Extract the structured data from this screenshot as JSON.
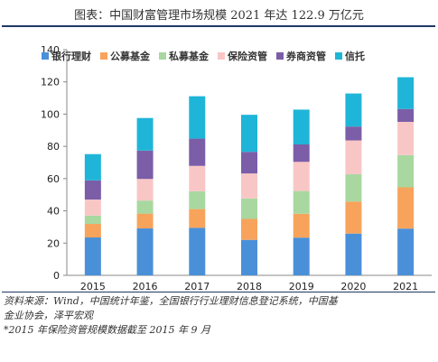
{
  "title": "图表：中国财富管理市场规模 2021 年达 122.9 万亿元",
  "notes": [
    "资料来源：Wind，中国统计年鉴，全国银行行业理财信息登记系统，中国基",
    "金业协会，泽平宏观",
    "*2015 年保险资管规模数据截至 2015 年 9 月"
  ],
  "chart_data": {
    "type": "bar",
    "stacked": true,
    "categories": [
      "2015",
      "2016",
      "2017",
      "2018",
      "2019",
      "2020",
      "2021"
    ],
    "series": [
      {
        "name": "银行理财",
        "color": "#4a90d9",
        "values": [
          23.5,
          29.1,
          29.5,
          22.0,
          23.4,
          25.9,
          29.0
        ]
      },
      {
        "name": "公募基金",
        "color": "#f7a35c",
        "values": [
          8.4,
          9.2,
          11.6,
          13.0,
          14.8,
          19.9,
          25.6
        ]
      },
      {
        "name": "私募基金",
        "color": "#a8d8a0",
        "values": [
          5.2,
          8.1,
          11.1,
          12.7,
          14.1,
          16.9,
          20.0
        ]
      },
      {
        "name": "保险资管",
        "color": "#f9c6c6",
        "values": [
          9.9,
          13.4,
          15.7,
          15.5,
          18.1,
          21.0,
          20.6
        ]
      },
      {
        "name": "券商资管",
        "color": "#7b5ea7",
        "values": [
          11.9,
          17.6,
          16.9,
          13.4,
          10.8,
          8.6,
          8.0
        ]
      },
      {
        "name": "信托",
        "color": "#1fb5d8",
        "values": [
          16.3,
          20.2,
          26.3,
          23.0,
          21.6,
          20.5,
          19.7
        ]
      }
    ],
    "ylim": [
      0,
      140
    ],
    "yticks": [
      0,
      20,
      40,
      60,
      80,
      100,
      120,
      140
    ],
    "xlabel": "",
    "ylabel": "",
    "legend_position": "top",
    "grid": false
  }
}
